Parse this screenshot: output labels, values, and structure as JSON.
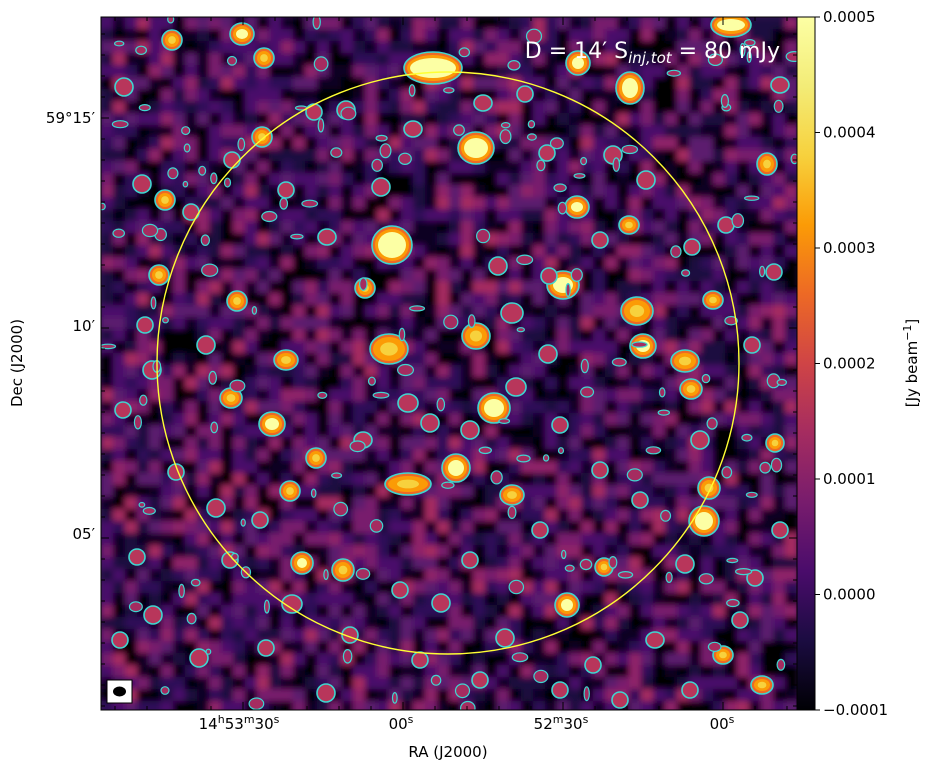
{
  "chart_data": {
    "type": "heatmap",
    "annotation": {
      "prefix": "D = 14′  S",
      "subscript": "inj,tot",
      "suffix": " = 80 mJy"
    },
    "xlabel": "RA (J2000)",
    "ylabel": "Dec (J2000)",
    "x_ticks": [
      {
        "h": "14",
        "m": "53",
        "s": "30"
      },
      {
        "s": "00"
      },
      {
        "m": "52",
        "s": "30"
      },
      {
        "s": "00"
      }
    ],
    "y_ticks": [
      "59°15′",
      "10′",
      "05′"
    ],
    "colorbar": {
      "label": "[Jy beam",
      "label_exp": "−1",
      "label_end": "]",
      "colormap": "inferno",
      "range": [
        -0.0001,
        0.0005
      ],
      "ticks": [
        "0.0005",
        "0.0004",
        "0.0003",
        "0.0002",
        "0.0001",
        "0.0000",
        "−0.0001"
      ]
    },
    "contour_color": "#3fd6d0",
    "circle_color": "#ffff33",
    "beam_marker": true
  }
}
